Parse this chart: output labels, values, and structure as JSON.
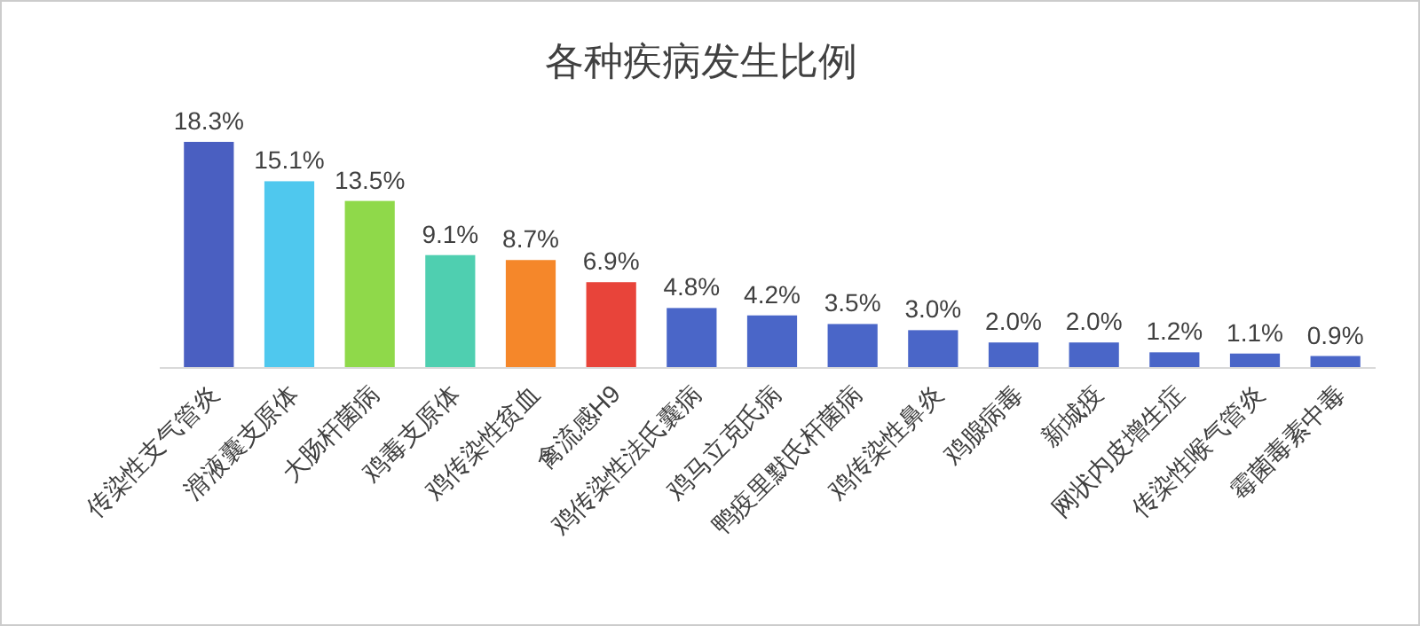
{
  "chart_data": {
    "type": "bar",
    "title": "各种疾病发生比例",
    "categories": [
      "传染性支气管炎",
      "滑液囊支原体",
      "大肠杆菌病",
      "鸡毒支原体",
      "鸡传染性贫血",
      "禽流感H9",
      "鸡传染性法氏囊病",
      "鸡马立克氏病",
      "鸭疫里默氏杆菌病",
      "鸡传染性鼻炎",
      "鸡腺病毒",
      "新城疫",
      "网状内皮增生症",
      "传染性喉气管炎",
      "霉菌毒素中毒"
    ],
    "values": [
      18.3,
      15.1,
      13.5,
      9.1,
      8.7,
      6.9,
      4.8,
      4.2,
      3.5,
      3.0,
      2.0,
      2.0,
      1.2,
      1.1,
      0.9
    ],
    "value_labels": [
      "18.3%",
      "15.1%",
      "13.5%",
      "9.1%",
      "8.7%",
      "6.9%",
      "4.8%",
      "4.2%",
      "3.5%",
      "3.0%",
      "2.0%",
      "2.0%",
      "1.2%",
      "1.1%",
      "0.9%"
    ],
    "colors": [
      "#4a5fc1",
      "#4fc8ee",
      "#8fd94a",
      "#4fcfb0",
      "#f5872a",
      "#e8443a",
      "#4a66c8",
      "#4a66c8",
      "#4a66c8",
      "#4a66c8",
      "#4a66c8",
      "#4a66c8",
      "#4a66c8",
      "#4a66c8",
      "#4a66c8"
    ]
  }
}
